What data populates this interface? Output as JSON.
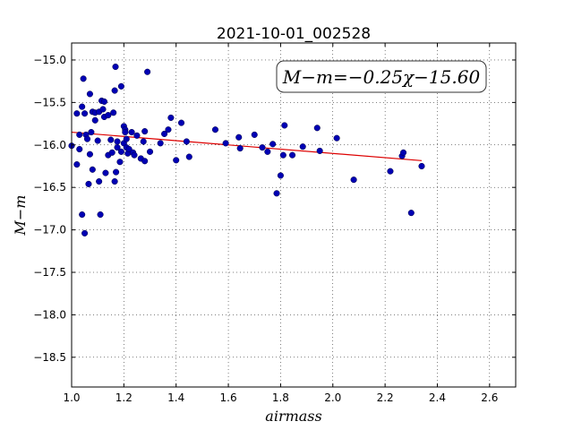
{
  "chart_data": {
    "type": "scatter",
    "title": "2021-10-01_002528",
    "xlabel": "airmass",
    "ylabel": "M−m",
    "xlim": [
      1.0,
      2.7
    ],
    "ylim": [
      -18.85,
      -14.8
    ],
    "x_ticks": [
      "1.0",
      "1.2",
      "1.4",
      "1.6",
      "1.8",
      "2.0",
      "2.2",
      "2.4",
      "2.6"
    ],
    "y_ticks": [
      "−15.0",
      "−15.5",
      "−16.0",
      "−16.5",
      "−17.0",
      "−17.5",
      "−18.0",
      "−18.5"
    ],
    "x_tick_values": [
      1.0,
      1.2,
      1.4,
      1.6,
      1.8,
      2.0,
      2.2,
      2.4,
      2.6
    ],
    "y_tick_values": [
      -15.0,
      -15.5,
      -16.0,
      -16.5,
      -17.0,
      -17.5,
      -18.0,
      -18.5
    ],
    "grid": true,
    "annotation": "M−m=−0.25χ−15.60",
    "marker_color": "#0000b4",
    "fit_color": "#dd0000",
    "fit": {
      "slope": -0.25,
      "intercept": -15.6,
      "x_range": [
        1.0,
        2.34
      ]
    },
    "points": [
      [
        1.0,
        -16.01
      ],
      [
        1.02,
        -16.23
      ],
      [
        1.02,
        -15.63
      ],
      [
        1.03,
        -16.05
      ],
      [
        1.03,
        -15.88
      ],
      [
        1.04,
        -16.82
      ],
      [
        1.04,
        -15.55
      ],
      [
        1.045,
        -15.22
      ],
      [
        1.05,
        -17.04
      ],
      [
        1.05,
        -15.63
      ],
      [
        1.055,
        -15.88
      ],
      [
        1.06,
        -15.93
      ],
      [
        1.065,
        -16.46
      ],
      [
        1.07,
        -16.11
      ],
      [
        1.07,
        -15.4
      ],
      [
        1.075,
        -15.85
      ],
      [
        1.08,
        -16.29
      ],
      [
        1.08,
        -15.61
      ],
      [
        1.09,
        -15.71
      ],
      [
        1.09,
        -15.62
      ],
      [
        1.1,
        -15.95
      ],
      [
        1.105,
        -16.43
      ],
      [
        1.105,
        -15.61
      ],
      [
        1.11,
        -16.82
      ],
      [
        1.115,
        -15.48
      ],
      [
        1.12,
        -15.58
      ],
      [
        1.125,
        -15.49
      ],
      [
        1.125,
        -15.67
      ],
      [
        1.13,
        -16.33
      ],
      [
        1.14,
        -16.12
      ],
      [
        1.14,
        -15.65
      ],
      [
        1.15,
        -15.94
      ],
      [
        1.155,
        -16.09
      ],
      [
        1.16,
        -15.62
      ],
      [
        1.165,
        -16.43
      ],
      [
        1.165,
        -15.36
      ],
      [
        1.168,
        -15.08
      ],
      [
        1.17,
        -16.32
      ],
      [
        1.175,
        -16.03
      ],
      [
        1.175,
        -15.96
      ],
      [
        1.185,
        -16.2
      ],
      [
        1.19,
        -15.31
      ],
      [
        1.19,
        -16.08
      ],
      [
        1.2,
        -15.98
      ],
      [
        1.2,
        -15.78
      ],
      [
        1.205,
        -15.82
      ],
      [
        1.205,
        -15.85
      ],
      [
        1.21,
        -15.93
      ],
      [
        1.21,
        -16.03
      ],
      [
        1.215,
        -16.1
      ],
      [
        1.22,
        -16.05
      ],
      [
        1.23,
        -15.85
      ],
      [
        1.235,
        -16.09
      ],
      [
        1.24,
        -16.12
      ],
      [
        1.25,
        -15.89
      ],
      [
        1.265,
        -16.16
      ],
      [
        1.275,
        -15.96
      ],
      [
        1.28,
        -16.19
      ],
      [
        1.28,
        -15.84
      ],
      [
        1.29,
        -15.14
      ],
      [
        1.3,
        -16.08
      ],
      [
        1.34,
        -15.98
      ],
      [
        1.355,
        -15.87
      ],
      [
        1.37,
        -15.82
      ],
      [
        1.38,
        -15.68
      ],
      [
        1.4,
        -16.18
      ],
      [
        1.42,
        -15.74
      ],
      [
        1.44,
        -15.96
      ],
      [
        1.45,
        -16.14
      ],
      [
        1.55,
        -15.82
      ],
      [
        1.59,
        -15.98
      ],
      [
        1.64,
        -15.91
      ],
      [
        1.645,
        -16.04
      ],
      [
        1.7,
        -15.88
      ],
      [
        1.73,
        -16.03
      ],
      [
        1.75,
        -16.08
      ],
      [
        1.77,
        -15.99
      ],
      [
        1.785,
        -16.57
      ],
      [
        1.8,
        -16.36
      ],
      [
        1.81,
        -16.12
      ],
      [
        1.815,
        -15.77
      ],
      [
        1.845,
        -16.12
      ],
      [
        1.885,
        -16.02
      ],
      [
        1.94,
        -15.8
      ],
      [
        1.95,
        -16.07
      ],
      [
        2.015,
        -15.92
      ],
      [
        2.08,
        -16.41
      ],
      [
        2.22,
        -16.31
      ],
      [
        2.265,
        -16.13
      ],
      [
        2.27,
        -16.09
      ],
      [
        2.3,
        -16.8
      ],
      [
        2.34,
        -16.25
      ]
    ]
  }
}
